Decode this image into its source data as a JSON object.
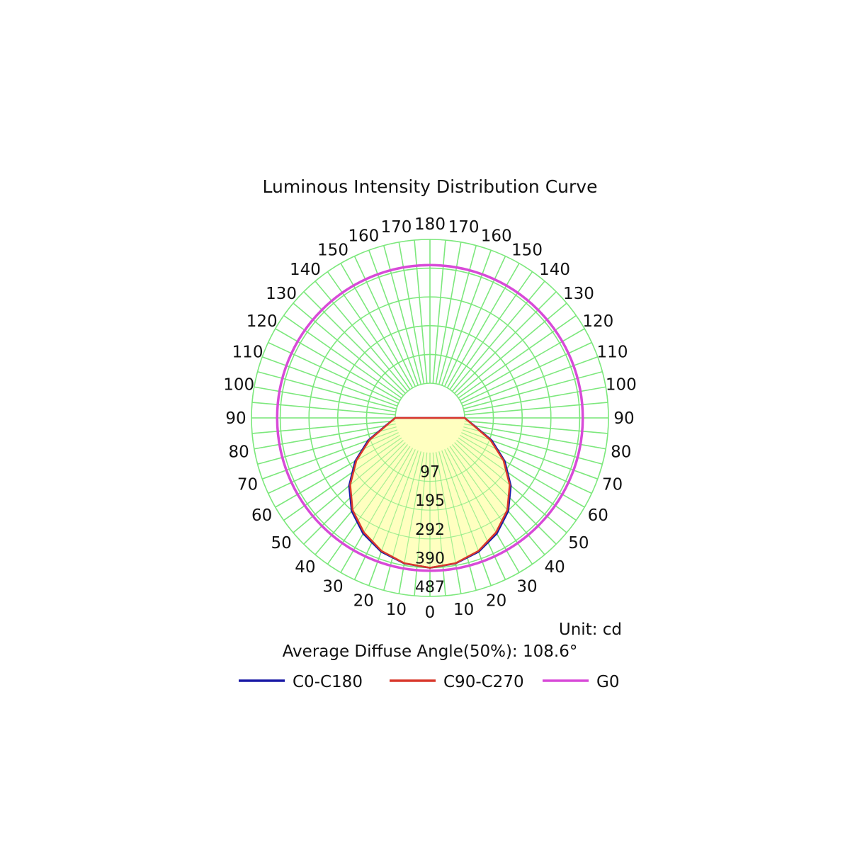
{
  "chart_data": {
    "type": "polar",
    "title": "Luminous Intensity Distribution Curve",
    "unit_label": "Unit: cd",
    "diffuse_angle_label": "Average Diffuse Angle(50%): 108.6°",
    "radial_ticks": [
      "97",
      "195",
      "292",
      "390",
      "487"
    ],
    "radial_max": 487,
    "angle_labels": [
      "0",
      "10",
      "20",
      "30",
      "40",
      "50",
      "60",
      "70",
      "80",
      "90",
      "100",
      "110",
      "120",
      "130",
      "140",
      "150",
      "160",
      "170",
      "180"
    ],
    "grid": true,
    "legend_position": "bottom",
    "series": [
      {
        "name": "C0-C180",
        "color": "#1a1aa6",
        "angles_deg": [
          0,
          10,
          20,
          30,
          40,
          50,
          60,
          70,
          80,
          90
        ],
        "values": [
          390,
          383,
          365,
          335,
          295,
          240,
          175,
          105,
          35,
          0
        ]
      },
      {
        "name": "C90-C270",
        "color": "#d9382c",
        "angles_deg": [
          0,
          10,
          20,
          30,
          40,
          50,
          60,
          70,
          80,
          90
        ],
        "values": [
          390,
          382,
          362,
          330,
          290,
          235,
          170,
          100,
          33,
          0
        ]
      },
      {
        "name": "G0",
        "color": "#d84ad8",
        "angles_deg": [
          0,
          30,
          60,
          90,
          120,
          150,
          180
        ],
        "values": [
          400,
          400,
          400,
          400,
          400,
          400,
          400
        ]
      }
    ],
    "fill_color": "#ffffc0",
    "grid_color": "#7de87d"
  }
}
